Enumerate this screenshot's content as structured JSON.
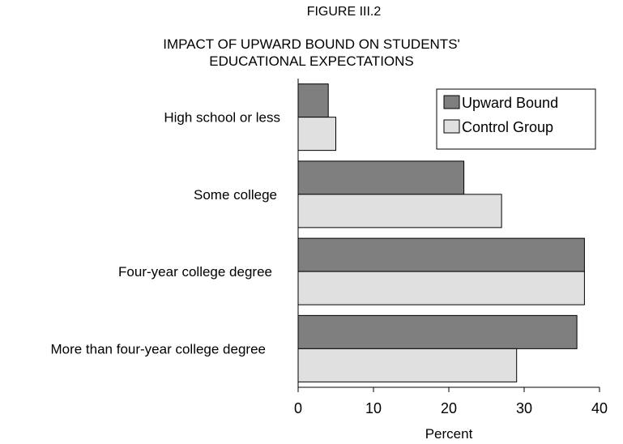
{
  "figure_label": "FIGURE III.2",
  "title_lines": [
    "IMPACT OF UPWARD BOUND ON STUDENTS'",
    "EDUCATIONAL EXPECTATIONS"
  ],
  "colors": {
    "upward_bound": "#7f7f7f",
    "control_group": "#e0e0e0",
    "stroke": "#000000"
  },
  "chart_data": {
    "type": "bar",
    "orientation": "horizontal",
    "title": "IMPACT OF UPWARD BOUND ON STUDENTS' EDUCATIONAL EXPECTATIONS",
    "categories": [
      "High school or less",
      "Some college",
      "Four-year college degree",
      "More than four-year college degree"
    ],
    "series": [
      {
        "name": "Upward Bound",
        "values": [
          4,
          22,
          38,
          37
        ]
      },
      {
        "name": "Control Group",
        "values": [
          5,
          27,
          38,
          29
        ]
      }
    ],
    "xlabel": "Percent",
    "ylabel": "",
    "xlim": [
      0,
      40
    ],
    "xticks": [
      "0",
      "10",
      "20",
      "30",
      "40"
    ],
    "grid": false,
    "legend": "top-right"
  }
}
